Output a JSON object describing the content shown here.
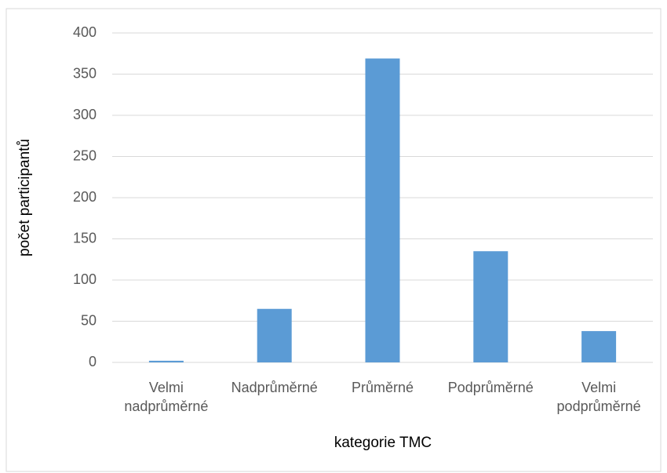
{
  "chart_data": {
    "type": "bar",
    "x_axis_label": "kategorie TMC",
    "y_axis_label": "počet participantů",
    "categories": [
      "Velmi nadprůměrné",
      "Nadprůměrné",
      "Průměrné",
      "Podprůměrné",
      "Velmi podprůměrné"
    ],
    "values": [
      2,
      65,
      369,
      135,
      38
    ],
    "color": "#5b9bd5",
    "ylim": [
      0,
      400
    ],
    "yticks": [
      0,
      50,
      100,
      150,
      200,
      250,
      300,
      350,
      400
    ],
    "grid": true
  }
}
